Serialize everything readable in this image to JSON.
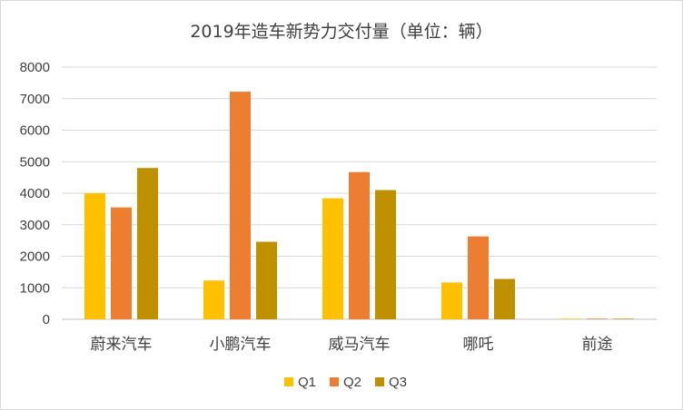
{
  "chart_data": {
    "type": "bar",
    "title": "2019年造车新势力交付量（单位：辆）",
    "categories": [
      "蔚来汽车",
      "小鹏汽车",
      "威马汽车",
      "哪吒",
      "前途"
    ],
    "series": [
      {
        "name": "Q1",
        "color": "#FFC000",
        "values": [
          4000,
          1230,
          3840,
          1170,
          20
        ]
      },
      {
        "name": "Q2",
        "color": "#ED7D31",
        "values": [
          3550,
          7220,
          4670,
          2630,
          20
        ]
      },
      {
        "name": "Q3",
        "color": "#BF9000",
        "values": [
          4800,
          2460,
          4100,
          1280,
          20
        ]
      }
    ],
    "ylim": [
      0,
      8000
    ],
    "yticks": [
      0,
      1000,
      2000,
      3000,
      4000,
      5000,
      6000,
      7000,
      8000
    ],
    "grid": true,
    "legend_position": "bottom"
  }
}
